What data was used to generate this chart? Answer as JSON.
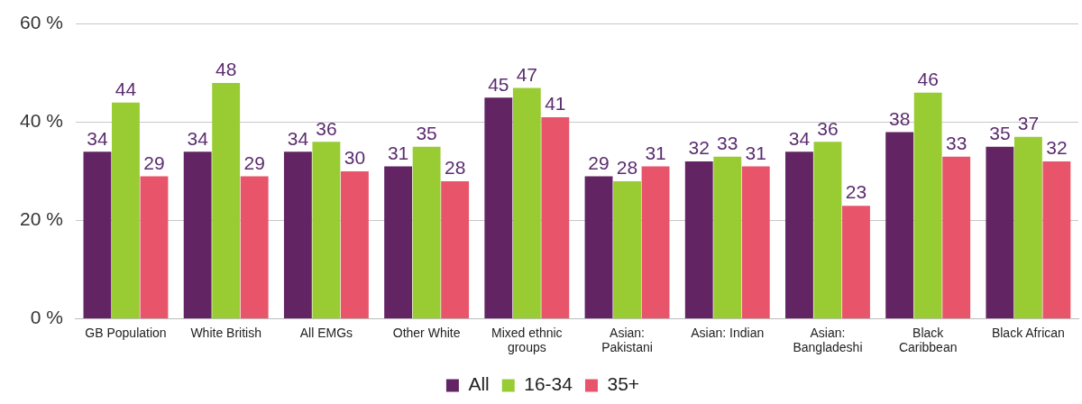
{
  "chart_data": {
    "type": "bar",
    "categories": [
      "GB Population",
      "White British",
      "All EMGs",
      "Other White",
      "Mixed ethnic groups",
      "Asian: Pakistani",
      "Asian: Indian",
      "Asian: Bangladeshi",
      "Black Caribbean",
      "Black African"
    ],
    "series": [
      {
        "name": "All",
        "color": "#622463",
        "values": [
          34,
          34,
          34,
          31,
          45,
          29,
          32,
          34,
          38,
          35
        ]
      },
      {
        "name": "16-34",
        "color": "#99cc33",
        "values": [
          44,
          48,
          36,
          35,
          47,
          28,
          33,
          36,
          46,
          37
        ]
      },
      {
        "name": "35+",
        "color": "#e8556a",
        "values": [
          29,
          29,
          30,
          28,
          41,
          31,
          31,
          23,
          33,
          32
        ]
      }
    ],
    "ylim": [
      0,
      60
    ],
    "yticks": [
      {
        "value": 0,
        "label": "0 %"
      },
      {
        "value": 20,
        "label": "20 %"
      },
      {
        "value": 40,
        "label": "40 %"
      },
      {
        "value": 60,
        "label": "60 %"
      }
    ],
    "grid": "y",
    "legend": "bottom",
    "data_labels": true
  }
}
